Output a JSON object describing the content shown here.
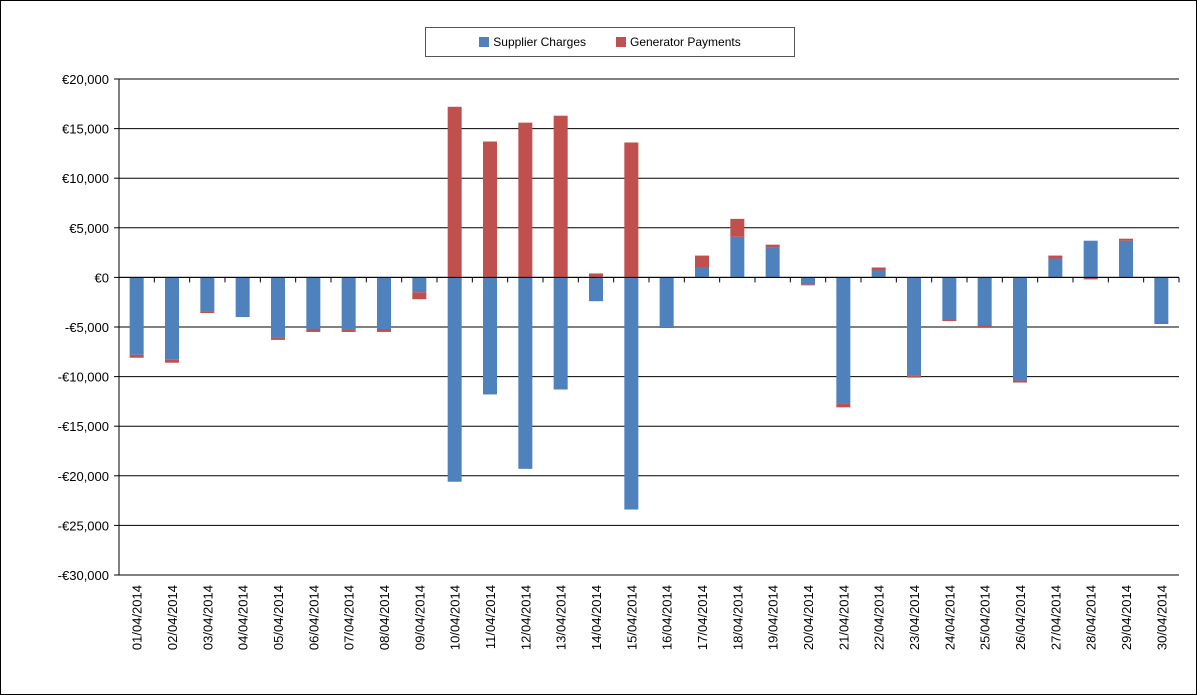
{
  "chart_data": {
    "type": "bar",
    "stacked": true,
    "categories": [
      "01/04/2014",
      "02/04/2014",
      "03/04/2014",
      "04/04/2014",
      "05/04/2014",
      "06/04/2014",
      "07/04/2014",
      "08/04/2014",
      "09/04/2014",
      "10/04/2014",
      "11/04/2014",
      "12/04/2014",
      "13/04/2014",
      "14/04/2014",
      "15/04/2014",
      "16/04/2014",
      "17/04/2014",
      "18/04/2014",
      "19/04/2014",
      "20/04/2014",
      "21/04/2014",
      "22/04/2014",
      "23/04/2014",
      "24/04/2014",
      "25/04/2014",
      "26/04/2014",
      "27/04/2014",
      "28/04/2014",
      "29/04/2014",
      "30/04/2014"
    ],
    "series": [
      {
        "name": "Supplier Charges",
        "color": "#4f81bd",
        "values": [
          -7800,
          -8300,
          -3400,
          -4000,
          -6100,
          -5200,
          -5300,
          -5200,
          -1500,
          -20600,
          -11800,
          -19300,
          -11300,
          -2400,
          -23400,
          -5000,
          1000,
          4100,
          3000,
          -700,
          -12700,
          700,
          -9900,
          -4200,
          -4800,
          -10400,
          1900,
          3700,
          3700,
          -4600
        ]
      },
      {
        "name": "Generator Payments",
        "color": "#c0504d",
        "values": [
          -300,
          -300,
          -200,
          0,
          -200,
          -300,
          -200,
          -300,
          -700,
          17200,
          13700,
          15600,
          16300,
          400,
          13600,
          -100,
          1200,
          1800,
          300,
          -100,
          -400,
          300,
          -200,
          -200,
          -200,
          -200,
          300,
          -200,
          200,
          -100
        ]
      }
    ],
    "ylim": [
      -30000,
      20000
    ],
    "ytick_labels": [
      "€20,000",
      "€15,000",
      "€10,000",
      "€5,000",
      "€0",
      "-€5,000",
      "-€10,000",
      "-€15,000",
      "-€20,000",
      "-€25,000",
      "-€30,000"
    ],
    "ytick_values": [
      20000,
      15000,
      10000,
      5000,
      0,
      -5000,
      -10000,
      -15000,
      -20000,
      -25000,
      -30000
    ],
    "grid": true,
    "legend_position": "top-center",
    "title": "",
    "xlabel": "",
    "ylabel": ""
  },
  "legend": {
    "supplier_label": "Supplier Charges",
    "generator_label": "Generator Payments"
  }
}
